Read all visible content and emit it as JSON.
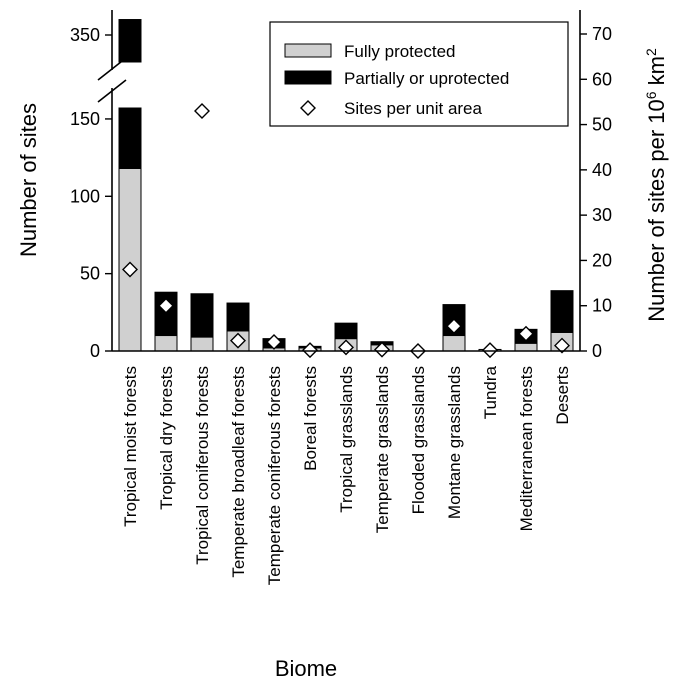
{
  "chart_data": {
    "type": "bar",
    "stacked": true,
    "xlabel": "Biome",
    "ylabel": "Number of sites",
    "y2label": "Number of sites per 10^6 km^2",
    "y2label_parts": {
      "main": "Number of sites per 10",
      "sup1": "6",
      "mid": " km",
      "sup2": "2"
    },
    "ylim_lower": [
      0,
      170
    ],
    "ylim_upper_break": [
      320,
      360
    ],
    "y_ticks_lower": [
      0,
      50,
      100,
      150
    ],
    "y_ticks_upper": [
      350
    ],
    "y2lim": [
      0,
      75
    ],
    "y2_ticks": [
      0,
      10,
      20,
      30,
      40,
      50,
      60,
      70
    ],
    "categories": [
      "Tropical moist forests",
      "Tropical dry forests",
      "Tropical coniferous forests",
      "Temperate broadleaf forests",
      "Temperate coniferous forests",
      "Boreal forests",
      "Tropical grasslands",
      "Temperate grasslands",
      "Flooded grasslands",
      "Montane grasslands",
      "Tundra",
      "Mediterranean forests",
      "Deserts"
    ],
    "series": [
      {
        "name": "Fully protected",
        "axis": "left",
        "values": [
          118,
          10,
          9,
          13,
          2,
          2,
          8,
          4,
          0,
          10,
          1,
          5,
          12
        ],
        "color": "#d0d0d0"
      },
      {
        "name": "Partially or uprotected",
        "axis": "left",
        "values": [
          242,
          28,
          28,
          18,
          6,
          1,
          10,
          2,
          0,
          20,
          0,
          9,
          27
        ],
        "color": "#000000"
      },
      {
        "name": "Sites per unit area",
        "axis": "right",
        "marker": "diamond",
        "values": [
          18,
          10,
          53,
          2.3,
          2,
          0.2,
          0.8,
          0.3,
          0,
          5.5,
          0.2,
          3.8,
          1.2
        ],
        "color": "#ffffff"
      }
    ],
    "legend_position": "top-right",
    "grid": false
  }
}
